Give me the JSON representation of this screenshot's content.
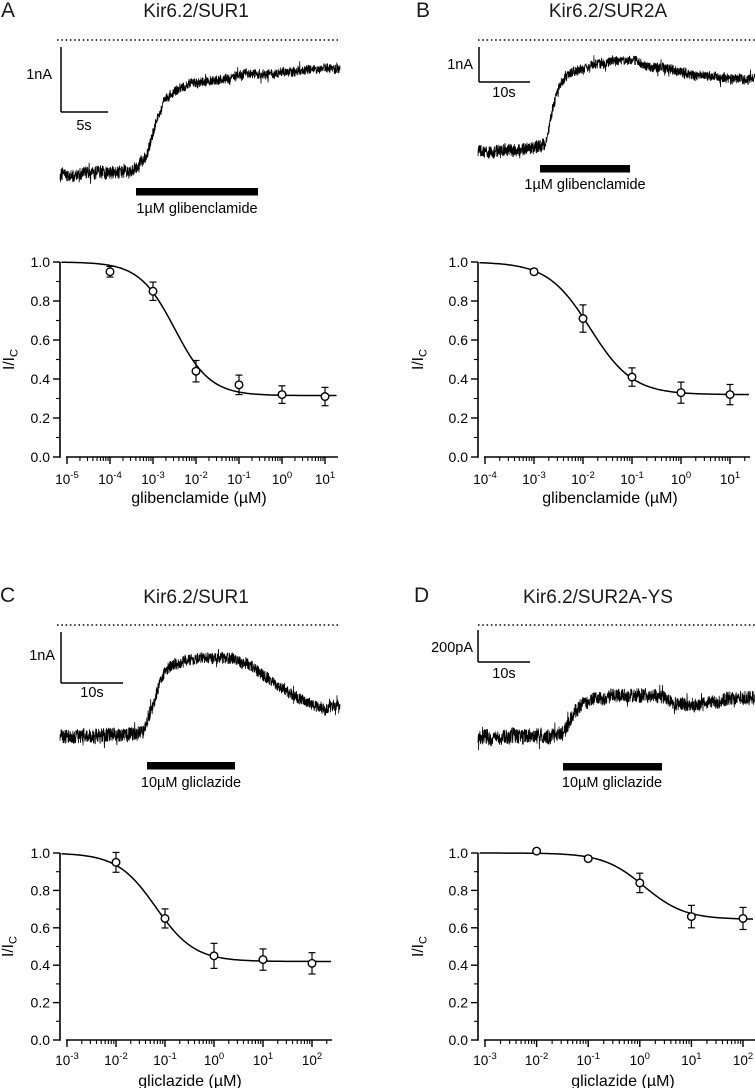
{
  "panels": [
    {
      "letter": "A",
      "title": "Kir6.2/SUR1",
      "trace": {
        "y_scalebar_label": "1nA",
        "x_scalebar_label": "5s",
        "drug_bar_label": "1µM glibenclamide",
        "zero_current_line": "dotted",
        "shape_keypoints": [
          [
            0,
            176
          ],
          [
            0.14,
            173
          ],
          [
            0.24,
            171
          ],
          [
            0.275,
            168
          ],
          [
            0.31,
            155
          ],
          [
            0.34,
            126
          ],
          [
            0.37,
            103
          ],
          [
            0.4,
            92
          ],
          [
            0.45,
            85
          ],
          [
            0.52,
            81
          ],
          [
            0.62,
            77
          ],
          [
            0.75,
            73
          ],
          [
            0.88,
            70
          ],
          [
            1,
            68
          ]
        ],
        "noise_amp_keypoints": [
          [
            0,
            8
          ],
          [
            0.27,
            8
          ],
          [
            0.33,
            6.5
          ],
          [
            0.45,
            6
          ],
          [
            1,
            5.5
          ]
        ]
      }
    },
    {
      "letter": "B",
      "title": "Kir6.2/SUR2A",
      "trace": {
        "y_scalebar_label": "1nA",
        "x_scalebar_label": "10s",
        "drug_bar_label": "1µM glibenclamide",
        "zero_current_line": "dotted",
        "shape_keypoints": [
          [
            0,
            151
          ],
          [
            0.12,
            150
          ],
          [
            0.22,
            148
          ],
          [
            0.245,
            143
          ],
          [
            0.27,
            108
          ],
          [
            0.295,
            85
          ],
          [
            0.33,
            73
          ],
          [
            0.4,
            67
          ],
          [
            0.48,
            63
          ],
          [
            0.56,
            62
          ],
          [
            0.64,
            67
          ],
          [
            0.72,
            72
          ],
          [
            0.8,
            76
          ],
          [
            0.9,
            78
          ],
          [
            1,
            79
          ]
        ],
        "noise_amp_keypoints": [
          [
            0,
            7.5
          ],
          [
            0.24,
            7.5
          ],
          [
            0.3,
            6
          ],
          [
            1,
            6
          ]
        ]
      }
    },
    {
      "letter": "C",
      "title": "Kir6.2/SUR1",
      "trace": {
        "y_scalebar_label": "1nA",
        "x_scalebar_label": "10s",
        "drug_bar_label": "10µM gliclazide",
        "zero_current_line": "dotted",
        "shape_keypoints": [
          [
            0,
            151
          ],
          [
            0.12,
            150
          ],
          [
            0.22,
            148
          ],
          [
            0.3,
            146
          ],
          [
            0.33,
            122
          ],
          [
            0.36,
            95
          ],
          [
            0.4,
            81
          ],
          [
            0.45,
            76
          ],
          [
            0.52,
            73
          ],
          [
            0.6,
            73
          ],
          [
            0.67,
            79
          ],
          [
            0.74,
            92
          ],
          [
            0.82,
            109
          ],
          [
            0.89,
            119
          ],
          [
            0.94,
            124
          ],
          [
            1,
            121
          ]
        ],
        "noise_amp_keypoints": [
          [
            0,
            9
          ],
          [
            0.3,
            9
          ],
          [
            0.36,
            7
          ],
          [
            1,
            7
          ]
        ]
      }
    },
    {
      "letter": "D",
      "title": "Kir6.2/SUR2A-YS",
      "trace": {
        "y_scalebar_label": "200pA",
        "x_scalebar_label": "10s",
        "drug_bar_label": "10µM gliclazide",
        "zero_current_line": "dotted",
        "shape_keypoints": [
          [
            0,
            152
          ],
          [
            0.1,
            152
          ],
          [
            0.2,
            151
          ],
          [
            0.27,
            150
          ],
          [
            0.31,
            147
          ],
          [
            0.34,
            133
          ],
          [
            0.38,
            118
          ],
          [
            0.43,
            112
          ],
          [
            0.5,
            110
          ],
          [
            0.58,
            109
          ],
          [
            0.66,
            112
          ],
          [
            0.72,
            118
          ],
          [
            0.78,
            120
          ],
          [
            0.86,
            117
          ],
          [
            0.93,
            114
          ],
          [
            1,
            112
          ]
        ],
        "noise_amp_keypoints": [
          [
            0,
            9.5
          ],
          [
            0.31,
            9.5
          ],
          [
            0.38,
            8.5
          ],
          [
            1,
            8.5
          ]
        ]
      }
    }
  ],
  "chart_data": [
    {
      "panel": "A",
      "type": "scatter",
      "title": "Kir6.2/SUR1",
      "xlabel": "glibenclamide (µM)",
      "ylabel": "I/I_C",
      "x_scale": "log",
      "x_tick_exponents": [
        -5,
        -4,
        -3,
        -2,
        -1,
        0,
        1
      ],
      "y_ticks": [
        0.0,
        0.2,
        0.4,
        0.6,
        0.8,
        1.0
      ],
      "y_minor_step": 0.1,
      "ylim": [
        0.0,
        1.0
      ],
      "grid": false,
      "x": [
        0.0001,
        0.001,
        0.01,
        0.1,
        1,
        10
      ],
      "y": [
        0.95,
        0.85,
        0.44,
        0.37,
        0.32,
        0.31
      ],
      "yerr": [
        0.027,
        0.047,
        0.055,
        0.05,
        0.045,
        0.047
      ],
      "fit": {
        "model": "hill",
        "floor": 0.315,
        "ic50": 0.0032,
        "hill": 1.05
      }
    },
    {
      "panel": "B",
      "type": "scatter",
      "title": "Kir6.2/SUR2A",
      "xlabel": "glibenclamide (µM)",
      "ylabel": "I/I_C",
      "x_scale": "log",
      "x_tick_exponents": [
        -4,
        -3,
        -2,
        -1,
        0,
        1
      ],
      "y_ticks": [
        0.0,
        0.2,
        0.4,
        0.6,
        0.8,
        1.0
      ],
      "y_minor_step": 0.1,
      "ylim": [
        0.0,
        1.0
      ],
      "grid": false,
      "x": [
        0.001,
        0.01,
        0.1,
        1,
        10
      ],
      "y": [
        0.95,
        0.71,
        0.41,
        0.33,
        0.32
      ],
      "yerr": [
        0.015,
        0.07,
        0.047,
        0.054,
        0.052
      ],
      "fit": {
        "model": "hill",
        "floor": 0.32,
        "ic50": 0.014,
        "hill": 1.0
      }
    },
    {
      "panel": "C",
      "type": "scatter",
      "title": "Kir6.2/SUR1",
      "xlabel": "gliclazide (µM)",
      "ylabel": "I/I_C",
      "x_scale": "log",
      "x_tick_exponents": [
        -3,
        -2,
        -1,
        0,
        1,
        2
      ],
      "y_ticks": [
        0.0,
        0.2,
        0.4,
        0.6,
        0.8,
        1.0
      ],
      "y_minor_step": 0.1,
      "ylim": [
        0.0,
        1.0
      ],
      "grid": false,
      "x": [
        0.01,
        0.1,
        1,
        10,
        100
      ],
      "y": [
        0.95,
        0.65,
        0.45,
        0.43,
        0.41
      ],
      "yerr": [
        0.053,
        0.051,
        0.067,
        0.057,
        0.057
      ],
      "fit": {
        "model": "hill",
        "floor": 0.42,
        "ic50": 0.065,
        "hill": 1.1
      }
    },
    {
      "panel": "D",
      "type": "scatter",
      "title": "Kir6.2/SUR2A-YS",
      "xlabel": "gliclazide (µM)",
      "ylabel": "I/I_C",
      "x_scale": "log",
      "x_tick_exponents": [
        -3,
        -2,
        -1,
        0,
        1,
        2
      ],
      "y_ticks": [
        0.0,
        0.2,
        0.4,
        0.6,
        0.8,
        1.0
      ],
      "y_minor_step": 0.1,
      "ylim": [
        0.0,
        1.0
      ],
      "grid": false,
      "x": [
        0.01,
        0.1,
        1,
        10,
        100
      ],
      "y": [
        1.01,
        0.97,
        0.84,
        0.66,
        0.65
      ],
      "yerr": [
        0.012,
        0.012,
        0.052,
        0.06,
        0.059
      ],
      "fit": {
        "model": "hill",
        "floor": 0.645,
        "ic50": 1.2,
        "hill": 1.1
      }
    }
  ]
}
